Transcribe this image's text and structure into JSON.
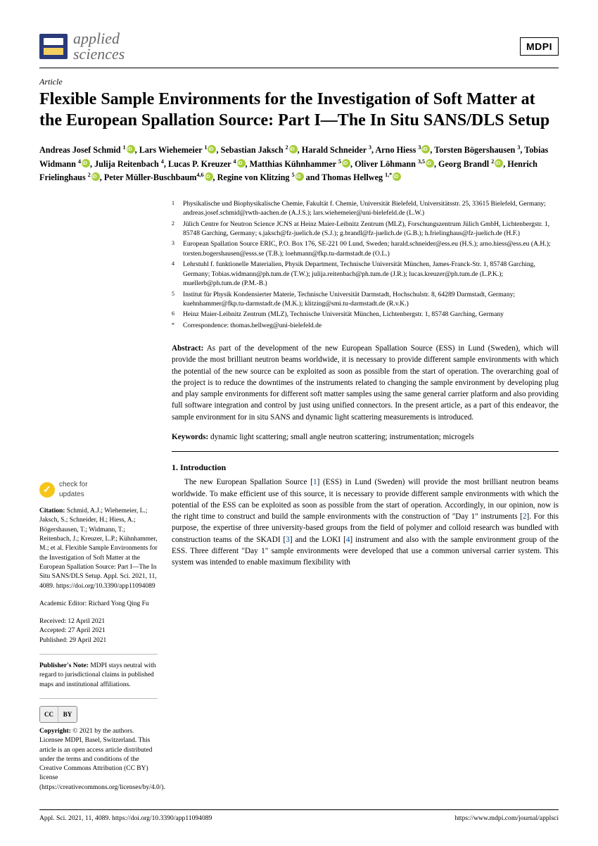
{
  "journal": {
    "name_line1": "applied",
    "name_line2": "sciences",
    "publisher": "MDPI"
  },
  "article_type": "Article",
  "title": "Flexible Sample Environments for the Investigation of Soft Matter at the European Spallation Source: Part I—The In Situ SANS/DLS Setup",
  "authors_html": "Andreas Josef Schmid <sup>1</sup>⬡, Lars Wiehemeier <sup>1</sup>⬡, Sebastian Jaksch <sup>2</sup>⬡, Harald Schneider <sup>3</sup>, Arno Hiess <sup>3</sup>⬡, Torsten Bögershausen <sup>3</sup>, Tobias Widmann <sup>4</sup>⬡, Julija Reitenbach <sup>4</sup>, Lucas P. Kreuzer <sup>4</sup>⬡, Matthias Kühnhammer <sup>5</sup>⬡, Oliver Löhmann <sup>3,5</sup>⬡, Georg Brandl <sup>2</sup>⬡, Henrich Frielinghaus <sup>2</sup>⬡, Peter Müller-Buschbaum<sup>4,6</sup>⬡, Regine von Klitzing <sup>5</sup>⬡ and Thomas Hellweg <sup>1,*</sup>⬡",
  "affiliations": [
    {
      "n": "1",
      "t": "Physikalische und Biophysikalische Chemie, Fakultät f. Chemie, Universität Bielefeld, Universitätsstr. 25, 33615 Bielefeld, Germany; andreas.josef.schmid@rwth-aachen.de (A.J.S.); lars.wiehemeier@uni-bielefeld.de (L.W.)"
    },
    {
      "n": "2",
      "t": "Jülich Centre for Neutron Science JCNS at Heinz Maier-Leibnitz Zentrum (MLZ), Forschungszentrum Jülich GmbH, Lichtenbergstr. 1, 85748 Garching, Germany; s.jaksch@fz-juelich.de (S.J.); g.brandl@fz-juelich.de (G.B.); h.frielinghaus@fz-juelich.de (H.F.)"
    },
    {
      "n": "3",
      "t": "European Spallation Source ERIC, P.O. Box 176, SE-221 00 Lund, Sweden; harald.schneider@ess.eu (H.S.); arno.hiess@ess.eu (A.H.); torsten.bogershausen@esss.se (T.B.); loehmann@fkp.tu-darmstadt.de (O.L.)"
    },
    {
      "n": "4",
      "t": "Lehrstuhl f. funktionelle Materialien, Physik Department, Technische Universität München, James-Franck-Str. 1, 85748 Garching, Germany; Tobias.widmann@ph.tum.de (T.W.); julija.reitenbach@ph.tum.de (J.R.); lucas.kreuzer@ph.tum.de (L.P.K.); muellerb@ph.tum.de (P.M.-B.)"
    },
    {
      "n": "5",
      "t": "Institut für Physik Kondensierter Materie, Technische Universität Darmstadt, Hochschulstr. 8, 64289 Darmstadt, Germany; kuehnhammer@fkp.tu-darmstadt.de (M.K.); klitzing@smi.tu-darmstadt.de (R.v.K.)"
    },
    {
      "n": "6",
      "t": "Heinz Maier-Leibnitz Zentrum (MLZ), Technische Universität München, Lichtenbergstr. 1, 85748 Garching, Germany"
    },
    {
      "n": "*",
      "t": "Correspondence: thomas.hellweg@uni-bielefeld.de"
    }
  ],
  "abstract_label": "Abstract:",
  "abstract": "As part of the development of the new European Spallation Source (ESS) in Lund (Sweden), which will provide the most brilliant neutron beams worldwide, it is necessary to provide different sample environments with which the potential of the new source can be exploited as soon as possible from the start of operation. The overarching goal of the project is to reduce the downtimes of the instruments related to changing the sample environment by developing plug and play sample environments for different soft matter samples using the same general carrier platform and also providing full software integration and control by just using unified connectors. In the present article, as a part of this endeavor, the sample environment for in situ SANS and dynamic light scattering measurements is introduced.",
  "keywords_label": "Keywords:",
  "keywords": "dynamic light scattering; small angle neutron scattering; instrumentation; microgels",
  "section1_heading": "1. Introduction",
  "introduction": "The new European Spallation Source [1] (ESS) in Lund (Sweden) will provide the most brilliant neutron beams worldwide. To make efficient use of this source, it is necessary to provide different sample environments with which the potential of the ESS can be exploited as soon as possible from the start of operation. Accordingly, in our opinion, now is the right time to construct and build the sample environments with the construction of \"Day 1\" instruments [2]. For this purpose, the expertise of three university-based groups from the field of polymer and colloid research was bundled with construction teams of the SKADI [3] and the LOKI [4] instrument and also with the sample environment group of the ESS. Three different \"Day 1\" sample environments were developed that use a common universal carrier system. This system was intended to enable maximum flexibility with",
  "sidebar": {
    "check_updates_l1": "check for",
    "check_updates_l2": "updates",
    "citation_label": "Citation:",
    "citation": "Schmid, A.J.; Wiehemeier, L.; Jaksch, S.; Schneider, H.; Hiess, A.; Bögershausen, T.; Widmann, T.; Reitenbach, J.; Kreuzer, L.P.; Kühnhammer, M.; et al. Flexible Sample Environments for the Investigation of Soft Matter at the European Spallation Source: Part I—The In Situ SANS/DLS Setup. Appl. Sci. 2021, 11, 4089. https://doi.org/10.3390/app11094089",
    "editor_label": "Academic Editor:",
    "editor": "Richard Yong Qing Fu",
    "received": "Received: 12 April 2021",
    "accepted": "Accepted: 27 April 2021",
    "published": "Published: 29 April 2021",
    "pubnote_label": "Publisher's Note:",
    "pubnote": "MDPI stays neutral with regard to jurisdictional claims in published maps and institutional affiliations.",
    "cc_cc": "CC",
    "cc_by": "BY",
    "copyright_label": "Copyright:",
    "copyright": "© 2021 by the authors. Licensee MDPI, Basel, Switzerland. This article is an open access article distributed under the terms and conditions of the Creative Commons Attribution (CC BY) license (https://creativecommons.org/licenses/by/4.0/)."
  },
  "footer": {
    "left": "Appl. Sci. 2021, 11, 4089. https://doi.org/10.3390/app11094089",
    "right": "https://www.mdpi.com/journal/applsci"
  },
  "colors": {
    "orcid": "#a6ce39",
    "link": "#0050a0",
    "journal_logo_bg": "#2a3a7a",
    "check_icon": "#f5c518"
  }
}
